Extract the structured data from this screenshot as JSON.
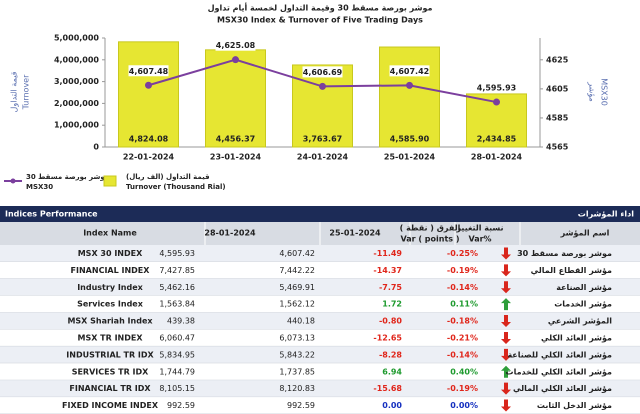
{
  "chart_data": {
    "type": "combo",
    "title_ar": "موشر بورصة مسقط 30 وقيمة التداول لخمسة أيام تداول",
    "title": "MSX30 Index & Turnover of Five Trading Days",
    "ylabel_ar": "قيمة التداول",
    "ylabel": "Turnover",
    "y2label": "MSX30",
    "y2label_ar": "مؤشر",
    "categories": [
      "22-01-2024",
      "23-01-2024",
      "24-01-2024",
      "25-01-2024",
      "28-01-2024"
    ],
    "series": [
      {
        "name": "Turnover (Thousand Rial)",
        "name_ar": "قيمة التداول (الف ريال)",
        "type": "bar",
        "color": "#e6e632",
        "values": [
          4824080,
          4456370,
          3763670,
          4585900,
          2434850
        ],
        "value_labels": [
          "4,824.08",
          "4,456.37",
          "3,763.67",
          "4,585.90",
          "2,434.85"
        ]
      },
      {
        "name": "MSX30",
        "name_ar": "موشر بورصة مسقط 30",
        "type": "line",
        "axis": "y2",
        "color": "#7b3f9e",
        "values": [
          4607.48,
          4625.08,
          4606.69,
          4607.42,
          4595.93
        ],
        "value_labels": [
          "4,607.48",
          "4,625.08",
          "4,606.69",
          "4,607.42",
          "4,595.93"
        ]
      }
    ],
    "ylim": [
      0,
      5000000
    ],
    "yticks": [
      0,
      {
        "value": 1000000,
        "label": "1,000,000"
      },
      {
        "value": 2000000,
        "label": "2,000,000"
      },
      {
        "value": 3000000,
        "label": "3,000,000"
      },
      {
        "value": 4000000,
        "label": "4,000,000"
      },
      {
        "value": 5000000,
        "label": "5,000,000"
      }
    ],
    "y2lim": [
      4565,
      4640
    ],
    "y2ticks": [
      4565,
      4585,
      4605,
      4625
    ]
  },
  "table": {
    "title": "Indices Performance",
    "title_ar": "اداء المؤشرات",
    "headers": {
      "name": "Index Name",
      "d1": "28-01-2024",
      "d2": "25-01-2024",
      "var_ar": "الفرق ( نقطة )",
      "var": "Var ( points )",
      "var_pct_ar": "نسبة التغيير",
      "var_pct": "Var%",
      "name_ar": "اسم المؤشر"
    },
    "rows": [
      {
        "name": "MSX 30 INDEX",
        "d1": "4,595.93",
        "d2": "4,607.42",
        "var": "-11.49",
        "var_pct": "-0.25%",
        "trend": "down",
        "name_ar": "موشر بورصة مسقط 30"
      },
      {
        "name": "FINANCIAL INDEX",
        "d1": "7,427.85",
        "d2": "7,442.22",
        "var": "-14.37",
        "var_pct": "-0.19%",
        "trend": "down",
        "name_ar": "مؤشر القطاع المالي"
      },
      {
        "name": "Industry Index",
        "d1": "5,462.16",
        "d2": "5,469.91",
        "var": "-7.75",
        "var_pct": "-0.14%",
        "trend": "down",
        "name_ar": "مؤشر الصناعة"
      },
      {
        "name": "Services Index",
        "d1": "1,563.84",
        "d2": "1,562.12",
        "var": "1.72",
        "var_pct": "0.11%",
        "trend": "up",
        "name_ar": "مؤشر الخدمات"
      },
      {
        "name": "MSX Shariah Index",
        "d1": "439.38",
        "d2": "440.18",
        "var": "-0.80",
        "var_pct": "-0.18%",
        "trend": "down",
        "name_ar": "المؤشر الشرعي"
      },
      {
        "name": "MSX TR INDEX",
        "d1": "6,060.47",
        "d2": "6,073.13",
        "var": "-12.65",
        "var_pct": "-0.21%",
        "trend": "down",
        "name_ar": "مؤشر العائد الكلي"
      },
      {
        "name": "INDUSTRIAL TR IDX",
        "d1": "5,834.95",
        "d2": "5,843.22",
        "var": "-8.28",
        "var_pct": "-0.14%",
        "trend": "down",
        "name_ar": "مؤشر العائد الكلي للصناعة"
      },
      {
        "name": "SERVICES TR IDX",
        "d1": "1,744.79",
        "d2": "1,737.85",
        "var": "6.94",
        "var_pct": "0.40%",
        "trend": "up",
        "name_ar": "مؤشر العائد الكلي للخدمات"
      },
      {
        "name": "FINANCIAL TR IDX",
        "d1": "8,105.15",
        "d2": "8,120.83",
        "var": "-15.68",
        "var_pct": "-0.19%",
        "trend": "down",
        "name_ar": "مؤشر العائد الكلي المالي"
      },
      {
        "name": "FIXED INCOME INDEX",
        "d1": "992.59",
        "d2": "992.59",
        "var": "0.00",
        "var_pct": "0.00%",
        "trend": "down",
        "name_ar": "مؤشر الدخل الثابت"
      }
    ]
  }
}
